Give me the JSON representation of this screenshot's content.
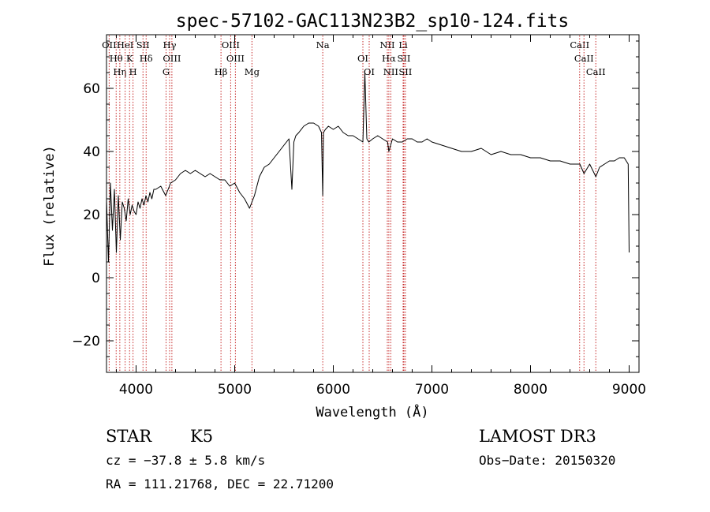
{
  "chart_data": {
    "type": "line",
    "title": "spec-57102-GAC113N23B2_sp10-124.fits",
    "xlabel": "Wavelength (Å)",
    "ylabel": "Flux (relative)",
    "xlim": [
      3700,
      9100
    ],
    "ylim": [
      -30,
      77
    ],
    "xticks": [
      4000,
      5000,
      6000,
      7000,
      8000,
      9000
    ],
    "yticks": [
      -20,
      0,
      20,
      40,
      60
    ],
    "series": [
      {
        "name": "spectrum",
        "x": [
          3700,
          3720,
          3740,
          3760,
          3780,
          3800,
          3820,
          3840,
          3860,
          3880,
          3900,
          3920,
          3940,
          3960,
          3980,
          4000,
          4020,
          4040,
          4060,
          4080,
          4100,
          4120,
          4140,
          4160,
          4180,
          4200,
          4250,
          4300,
          4350,
          4400,
          4450,
          4500,
          4550,
          4600,
          4650,
          4700,
          4750,
          4800,
          4850,
          4900,
          4950,
          5000,
          5050,
          5100,
          5150,
          5200,
          5250,
          5300,
          5350,
          5400,
          5450,
          5500,
          5550,
          5580,
          5600,
          5620,
          5650,
          5700,
          5750,
          5800,
          5850,
          5880,
          5893,
          5900,
          5920,
          5950,
          6000,
          6050,
          6100,
          6150,
          6200,
          6250,
          6300,
          6320,
          6340,
          6360,
          6400,
          6450,
          6500,
          6550,
          6563,
          6600,
          6650,
          6700,
          6750,
          6800,
          6850,
          6900,
          6950,
          7000,
          7100,
          7200,
          7300,
          7400,
          7500,
          7600,
          7700,
          7800,
          7900,
          8000,
          8100,
          8200,
          8300,
          8400,
          8500,
          8542,
          8600,
          8662,
          8700,
          8750,
          8800,
          8850,
          8900,
          8950,
          8990,
          9000
        ],
        "y": [
          25,
          5,
          30,
          15,
          28,
          8,
          26,
          12,
          24,
          22,
          18,
          25,
          20,
          23,
          21,
          20,
          24,
          22,
          25,
          23,
          26,
          24,
          27,
          25,
          28,
          28,
          29,
          26,
          30,
          31,
          33,
          34,
          33,
          34,
          33,
          32,
          33,
          32,
          31,
          31,
          29,
          30,
          27,
          25,
          22,
          26,
          32,
          35,
          36,
          38,
          40,
          42,
          44,
          28,
          43,
          45,
          46,
          48,
          49,
          49,
          48,
          46,
          26,
          46,
          47,
          48,
          47,
          48,
          46,
          45,
          45,
          44,
          43,
          65,
          44,
          43,
          44,
          45,
          44,
          43,
          40,
          44,
          43,
          43,
          44,
          44,
          43,
          43,
          44,
          43,
          42,
          41,
          40,
          40,
          41,
          39,
          40,
          39,
          39,
          38,
          38,
          37,
          37,
          36,
          36,
          33,
          36,
          32,
          35,
          36,
          37,
          37,
          38,
          38,
          36,
          8
        ]
      }
    ],
    "line_markers": [
      {
        "label": "OII",
        "x": 3727
      },
      {
        "label": "Hθ",
        "x": 3798
      },
      {
        "label": "Hη",
        "x": 3835
      },
      {
        "label": "HeI",
        "x": 3889
      },
      {
        "label": "K",
        "x": 3934
      },
      {
        "label": "H",
        "x": 3969
      },
      {
        "label": "SII",
        "x": 4070
      },
      {
        "label": "Hδ",
        "x": 4102
      },
      {
        "label": "G",
        "x": 4304
      },
      {
        "label": "Hγ",
        "x": 4340
      },
      {
        "label": "OIII",
        "x": 4363
      },
      {
        "label": "Hβ",
        "x": 4861
      },
      {
        "label": "OIII",
        "x": 4959
      },
      {
        "label": "OIII",
        "x": 5007
      },
      {
        "label": "Mg",
        "x": 5175
      },
      {
        "label": "Na",
        "x": 5893
      },
      {
        "label": "OI",
        "x": 6300
      },
      {
        "label": "OI",
        "x": 6364
      },
      {
        "label": "NII",
        "x": 6548
      },
      {
        "label": "Hα",
        "x": 6563
      },
      {
        "label": "NII",
        "x": 6583
      },
      {
        "label": "Li",
        "x": 6708
      },
      {
        "label": "SII",
        "x": 6716
      },
      {
        "label": "SII",
        "x": 6731
      },
      {
        "label": "CaII",
        "x": 8498
      },
      {
        "label": "CaII",
        "x": 8542
      },
      {
        "label": "CaII",
        "x": 8662
      }
    ]
  },
  "info": {
    "class": "STAR",
    "subclass": "K5",
    "survey": "LAMOST DR3",
    "cz": "cz = −37.8 ± 5.8 km/s",
    "obsdate": "Obs−Date: 20150320",
    "radec": "RA = 111.21768, DEC =  22.71200"
  },
  "colors": {
    "marker": "#c62828",
    "line": "#000000"
  }
}
